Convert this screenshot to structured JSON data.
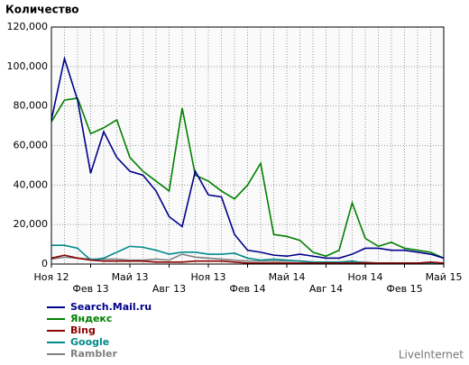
{
  "chart_data": {
    "type": "line",
    "title": "Количество",
    "brand": "LiveInternet",
    "categories": [
      "Ноя 12",
      null,
      null,
      "Фев 13",
      null,
      null,
      "Май 13",
      null,
      null,
      "Авг 13",
      null,
      null,
      "Ноя 13",
      null,
      null,
      "Фев 14",
      null,
      null,
      "Май 14",
      null,
      null,
      "Авг 14",
      null,
      null,
      "Ноя 14",
      null,
      null,
      "Фев 15",
      null,
      null,
      "Май 15"
    ],
    "ylim": [
      0,
      120000
    ],
    "yticks": [
      0,
      {
        "value": 20000,
        "label": "20,000"
      },
      {
        "value": 40000,
        "label": "40,000"
      },
      {
        "value": 60000,
        "label": "60,000"
      },
      {
        "value": 80000,
        "label": "80,000"
      },
      {
        "value": 100000,
        "label": "100,000"
      },
      {
        "value": 120000,
        "label": "120,000"
      }
    ],
    "grid": true,
    "series": [
      {
        "name": "Search.Mail.ru",
        "color": "#00008b",
        "values": [
          73000,
          104000,
          83000,
          46000,
          67000,
          54000,
          47000,
          45000,
          37000,
          24000,
          19000,
          47000,
          35000,
          34000,
          15000,
          7000,
          6000,
          4500,
          4000,
          5000,
          4000,
          3000,
          3000,
          5000,
          8000,
          8000,
          7000,
          7000,
          6000,
          5000,
          3000
        ]
      },
      {
        "name": "Яндекс",
        "color": "#008000",
        "values": [
          72000,
          83000,
          84000,
          66000,
          69000,
          73000,
          54000,
          47000,
          42000,
          37000,
          79000,
          45000,
          42000,
          37000,
          33000,
          40000,
          51000,
          15000,
          14000,
          12000,
          6000,
          4000,
          7000,
          31000,
          13000,
          9000,
          11000,
          8000,
          7000,
          6000,
          3000
        ]
      },
      {
        "name": "Bing",
        "color": "#8b0000",
        "values": [
          3000,
          4500,
          3000,
          2000,
          1500,
          1500,
          1500,
          1500,
          1000,
          1000,
          1000,
          1500,
          1500,
          1500,
          1000,
          500,
          500,
          500,
          500,
          500,
          500,
          500,
          500,
          500,
          500,
          500,
          500,
          500,
          500,
          1000,
          500
        ]
      },
      {
        "name": "Google",
        "color": "#008b8b",
        "values": [
          9500,
          9500,
          8000,
          2000,
          3000,
          6000,
          9000,
          8500,
          7000,
          5000,
          6000,
          6000,
          5000,
          5000,
          5500,
          3000,
          2000,
          2500,
          2000,
          1500,
          1000,
          1000,
          1000,
          1500,
          500,
          500,
          500,
          500,
          500,
          500,
          500
        ]
      },
      {
        "name": "Rambler",
        "color": "#808080",
        "values": [
          2500,
          3500,
          3000,
          2500,
          2500,
          2500,
          2000,
          2000,
          2500,
          2000,
          5000,
          3500,
          3000,
          2500,
          2000,
          1500,
          1500,
          1500,
          1500,
          1500,
          1000,
          1000,
          1000,
          1000,
          1000,
          500,
          500,
          500,
          500,
          500,
          500
        ]
      }
    ]
  }
}
